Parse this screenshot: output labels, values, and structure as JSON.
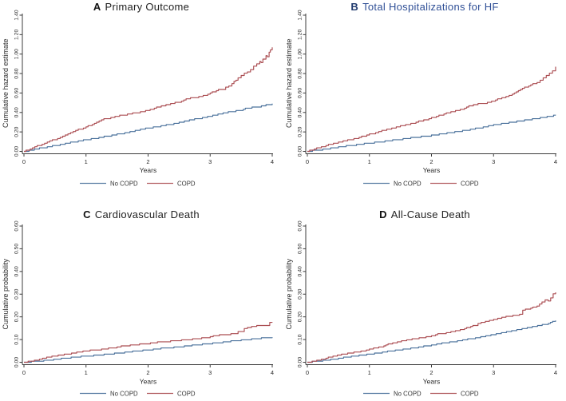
{
  "colors": {
    "no_copd": "#49709b",
    "copd": "#ab4d52",
    "axis": "#3c3c3c",
    "title_default": "#222222",
    "title_letter_default": "#111111",
    "title_b_letter": "#203a6e",
    "title_b_text": "#2f4f96"
  },
  "legend": {
    "items": [
      {
        "label": "No COPD",
        "color_key": "no_copd"
      },
      {
        "label": "COPD",
        "color_key": "copd"
      }
    ]
  },
  "chart_data": [
    {
      "type": "line",
      "panel_label": "A",
      "title": "Primary Outcome",
      "letter_color_key": "title_letter_default",
      "title_color_key": "title_default",
      "ylabel": "Cumulative hazard estimate",
      "xlabel": "Years",
      "ylim": [
        0,
        1.4
      ],
      "xlim": [
        0,
        4
      ],
      "yticks": [
        "0.00",
        "0.20",
        "0.40",
        "0.60",
        "0.80",
        "1.00",
        "1.20",
        "1.40"
      ],
      "xticks": [
        0,
        1,
        2,
        3,
        4
      ],
      "grid": false,
      "legend_position": "bottom",
      "series": [
        {
          "name": "No COPD",
          "color_key": "no_copd",
          "points": [
            [
              0,
              0
            ],
            [
              0.25,
              0.03
            ],
            [
              0.5,
              0.06
            ],
            [
              0.75,
              0.09
            ],
            [
              1,
              0.12
            ],
            [
              1.25,
              0.145
            ],
            [
              1.5,
              0.175
            ],
            [
              1.75,
              0.205
            ],
            [
              2,
              0.24
            ],
            [
              2.25,
              0.265
            ],
            [
              2.5,
              0.295
            ],
            [
              2.75,
              0.33
            ],
            [
              3,
              0.36
            ],
            [
              3.25,
              0.4
            ],
            [
              3.5,
              0.425
            ],
            [
              3.6,
              0.445
            ],
            [
              3.75,
              0.455
            ],
            [
              3.9,
              0.475
            ],
            [
              4,
              0.49
            ]
          ]
        },
        {
          "name": "COPD",
          "color_key": "copd",
          "points": [
            [
              0,
              0
            ],
            [
              0.1,
              0.025
            ],
            [
              0.25,
              0.065
            ],
            [
              0.5,
              0.125
            ],
            [
              0.75,
              0.19
            ],
            [
              1,
              0.255
            ],
            [
              1.1,
              0.27
            ],
            [
              1.17,
              0.3
            ],
            [
              1.25,
              0.325
            ],
            [
              1.4,
              0.345
            ],
            [
              1.5,
              0.365
            ],
            [
              1.75,
              0.39
            ],
            [
              2,
              0.42
            ],
            [
              2.1,
              0.445
            ],
            [
              2.25,
              0.47
            ],
            [
              2.4,
              0.495
            ],
            [
              2.5,
              0.505
            ],
            [
              2.65,
              0.545
            ],
            [
              2.75,
              0.555
            ],
            [
              2.85,
              0.56
            ],
            [
              3,
              0.6
            ],
            [
              3.1,
              0.625
            ],
            [
              3.2,
              0.64
            ],
            [
              3.3,
              0.67
            ],
            [
              3.35,
              0.7
            ],
            [
              3.45,
              0.755
            ],
            [
              3.5,
              0.78
            ],
            [
              3.55,
              0.8
            ],
            [
              3.6,
              0.815
            ],
            [
              3.65,
              0.845
            ],
            [
              3.7,
              0.87
            ],
            [
              3.75,
              0.895
            ],
            [
              3.8,
              0.925
            ],
            [
              3.82,
              0.91
            ],
            [
              3.85,
              0.945
            ],
            [
              3.9,
              0.985
            ],
            [
              3.92,
              0.975
            ],
            [
              3.95,
              1.02
            ],
            [
              3.97,
              1.045
            ],
            [
              4,
              1.07
            ]
          ]
        }
      ]
    },
    {
      "type": "line",
      "panel_label": "B",
      "title": "Total Hospitalizations for HF",
      "letter_color_key": "title_b_letter",
      "title_color_key": "title_b_text",
      "ylabel": "Cumulative hazard estimate",
      "xlabel": "Years",
      "ylim": [
        0,
        1.4
      ],
      "xlim": [
        0,
        4
      ],
      "yticks": [
        "0.00",
        "0.20",
        "0.40",
        "0.60",
        "0.80",
        "1.00",
        "1.20",
        "1.40"
      ],
      "xticks": [
        0,
        1,
        2,
        3,
        4
      ],
      "grid": false,
      "legend_position": "bottom",
      "series": [
        {
          "name": "No COPD",
          "color_key": "no_copd",
          "points": [
            [
              0,
              0
            ],
            [
              0.25,
              0.02
            ],
            [
              0.5,
              0.045
            ],
            [
              0.75,
              0.065
            ],
            [
              1,
              0.085
            ],
            [
              1.25,
              0.105
            ],
            [
              1.5,
              0.125
            ],
            [
              1.75,
              0.145
            ],
            [
              2,
              0.165
            ],
            [
              2.25,
              0.19
            ],
            [
              2.5,
              0.21
            ],
            [
              2.75,
              0.24
            ],
            [
              3,
              0.27
            ],
            [
              3.25,
              0.295
            ],
            [
              3.5,
              0.32
            ],
            [
              3.75,
              0.345
            ],
            [
              3.9,
              0.36
            ],
            [
              4,
              0.37
            ]
          ]
        },
        {
          "name": "COPD",
          "color_key": "copd",
          "points": [
            [
              0,
              0
            ],
            [
              0.15,
              0.035
            ],
            [
              0.3,
              0.06
            ],
            [
              0.5,
              0.09
            ],
            [
              0.65,
              0.115
            ],
            [
              0.75,
              0.13
            ],
            [
              1,
              0.175
            ],
            [
              1.1,
              0.19
            ],
            [
              1.2,
              0.215
            ],
            [
              1.4,
              0.245
            ],
            [
              1.5,
              0.26
            ],
            [
              1.75,
              0.3
            ],
            [
              2,
              0.345
            ],
            [
              2.2,
              0.385
            ],
            [
              2.35,
              0.41
            ],
            [
              2.5,
              0.435
            ],
            [
              2.6,
              0.465
            ],
            [
              2.75,
              0.49
            ],
            [
              2.9,
              0.5
            ],
            [
              3,
              0.52
            ],
            [
              3.1,
              0.545
            ],
            [
              3.2,
              0.56
            ],
            [
              3.3,
              0.59
            ],
            [
              3.4,
              0.625
            ],
            [
              3.5,
              0.655
            ],
            [
              3.6,
              0.68
            ],
            [
              3.7,
              0.71
            ],
            [
              3.8,
              0.755
            ],
            [
              3.85,
              0.775
            ],
            [
              3.9,
              0.8
            ],
            [
              3.95,
              0.83
            ],
            [
              4,
              0.87
            ]
          ]
        }
      ]
    },
    {
      "type": "line",
      "panel_label": "C",
      "title": "Cardiovascular Death",
      "letter_color_key": "title_letter_default",
      "title_color_key": "title_default",
      "ylabel": "Cumulative probability",
      "xlabel": "Years",
      "ylim": [
        0,
        0.6
      ],
      "xlim": [
        0,
        4
      ],
      "yticks": [
        "0.00",
        "0.10",
        "0.20",
        "0.30",
        "0.40",
        "0.50",
        "0.60"
      ],
      "xticks": [
        0,
        1,
        2,
        3,
        4
      ],
      "grid": false,
      "legend_position": "bottom",
      "series": [
        {
          "name": "No COPD",
          "color_key": "no_copd",
          "points": [
            [
              0,
              0
            ],
            [
              0.2,
              0.004
            ],
            [
              0.4,
              0.01
            ],
            [
              0.6,
              0.016
            ],
            [
              0.8,
              0.022
            ],
            [
              1,
              0.027
            ],
            [
              1.25,
              0.033
            ],
            [
              1.5,
              0.04
            ],
            [
              1.75,
              0.048
            ],
            [
              2,
              0.055
            ],
            [
              2.25,
              0.062
            ],
            [
              2.5,
              0.068
            ],
            [
              2.75,
              0.076
            ],
            [
              3,
              0.083
            ],
            [
              3.25,
              0.09
            ],
            [
              3.5,
              0.097
            ],
            [
              3.75,
              0.104
            ],
            [
              3.9,
              0.108
            ],
            [
              4,
              0.11
            ]
          ]
        },
        {
          "name": "COPD",
          "color_key": "copd",
          "points": [
            [
              0,
              0
            ],
            [
              0.1,
              0.004
            ],
            [
              0.2,
              0.01
            ],
            [
              0.3,
              0.018
            ],
            [
              0.4,
              0.024
            ],
            [
              0.5,
              0.028
            ],
            [
              0.6,
              0.032
            ],
            [
              0.7,
              0.036
            ],
            [
              0.8,
              0.04
            ],
            [
              0.9,
              0.046
            ],
            [
              1,
              0.05
            ],
            [
              1.1,
              0.053
            ],
            [
              1.25,
              0.057
            ],
            [
              1.4,
              0.062
            ],
            [
              1.5,
              0.066
            ],
            [
              1.6,
              0.072
            ],
            [
              1.75,
              0.076
            ],
            [
              1.9,
              0.08
            ],
            [
              2,
              0.083
            ],
            [
              2.15,
              0.088
            ],
            [
              2.25,
              0.09
            ],
            [
              2.4,
              0.094
            ],
            [
              2.5,
              0.096
            ],
            [
              2.65,
              0.1
            ],
            [
              2.75,
              0.103
            ],
            [
              2.9,
              0.108
            ],
            [
              3,
              0.111
            ],
            [
              3.05,
              0.116
            ],
            [
              3.15,
              0.12
            ],
            [
              3.3,
              0.123
            ],
            [
              3.4,
              0.126
            ],
            [
              3.45,
              0.137
            ],
            [
              3.5,
              0.133
            ],
            [
              3.55,
              0.148
            ],
            [
              3.6,
              0.152
            ],
            [
              3.7,
              0.158
            ],
            [
              3.75,
              0.16
            ],
            [
              3.93,
              0.161
            ],
            [
              3.96,
              0.174
            ],
            [
              4,
              0.175
            ]
          ]
        }
      ]
    },
    {
      "type": "line",
      "panel_label": "D",
      "title": "All-Cause Death",
      "letter_color_key": "title_letter_default",
      "title_color_key": "title_default",
      "ylabel": "Cumulative probability",
      "xlabel": "Years",
      "ylim": [
        0,
        0.6
      ],
      "xlim": [
        0,
        4
      ],
      "yticks": [
        "0.00",
        "0.10",
        "0.20",
        "0.30",
        "0.40",
        "0.50",
        "0.60"
      ],
      "xticks": [
        0,
        1,
        2,
        3,
        4
      ],
      "grid": false,
      "legend_position": "bottom",
      "series": [
        {
          "name": "No COPD",
          "color_key": "no_copd",
          "points": [
            [
              0,
              0
            ],
            [
              0.25,
              0.008
            ],
            [
              0.5,
              0.017
            ],
            [
              0.75,
              0.027
            ],
            [
              1,
              0.036
            ],
            [
              1.25,
              0.046
            ],
            [
              1.5,
              0.055
            ],
            [
              1.75,
              0.065
            ],
            [
              2,
              0.076
            ],
            [
              2.25,
              0.087
            ],
            [
              2.5,
              0.097
            ],
            [
              2.75,
              0.11
            ],
            [
              3,
              0.122
            ],
            [
              3.25,
              0.135
            ],
            [
              3.5,
              0.149
            ],
            [
              3.75,
              0.163
            ],
            [
              3.85,
              0.168
            ],
            [
              3.95,
              0.178
            ],
            [
              4,
              0.184
            ]
          ]
        },
        {
          "name": "COPD",
          "color_key": "copd",
          "points": [
            [
              0,
              0
            ],
            [
              0.15,
              0.008
            ],
            [
              0.3,
              0.018
            ],
            [
              0.45,
              0.028
            ],
            [
              0.55,
              0.035
            ],
            [
              0.65,
              0.041
            ],
            [
              0.75,
              0.044
            ],
            [
              0.9,
              0.05
            ],
            [
              1,
              0.057
            ],
            [
              1.1,
              0.064
            ],
            [
              1.2,
              0.069
            ],
            [
              1.3,
              0.081
            ],
            [
              1.45,
              0.088
            ],
            [
              1.55,
              0.096
            ],
            [
              1.65,
              0.101
            ],
            [
              1.8,
              0.107
            ],
            [
              1.95,
              0.112
            ],
            [
              2,
              0.115
            ],
            [
              2.1,
              0.124
            ],
            [
              2.2,
              0.128
            ],
            [
              2.35,
              0.137
            ],
            [
              2.5,
              0.145
            ],
            [
              2.6,
              0.154
            ],
            [
              2.7,
              0.164
            ],
            [
              2.8,
              0.174
            ],
            [
              2.9,
              0.181
            ],
            [
              3,
              0.189
            ],
            [
              3.1,
              0.194
            ],
            [
              3.2,
              0.203
            ],
            [
              3.35,
              0.206
            ],
            [
              3.42,
              0.211
            ],
            [
              3.47,
              0.229
            ],
            [
              3.6,
              0.238
            ],
            [
              3.7,
              0.247
            ],
            [
              3.78,
              0.266
            ],
            [
              3.83,
              0.276
            ],
            [
              3.88,
              0.272
            ],
            [
              3.92,
              0.285
            ],
            [
              3.96,
              0.303
            ],
            [
              4,
              0.308
            ]
          ]
        }
      ]
    }
  ]
}
